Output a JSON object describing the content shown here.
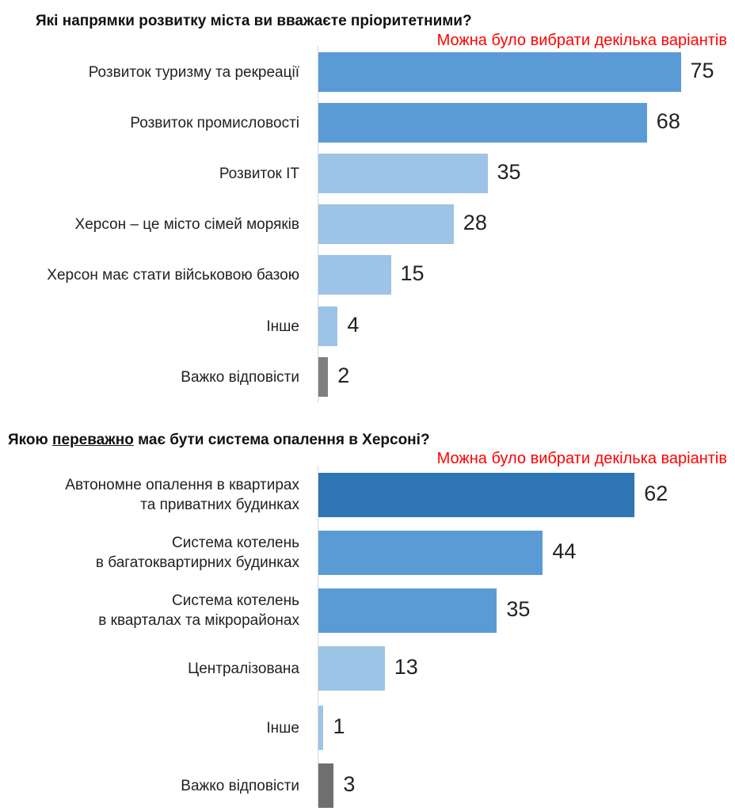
{
  "chart_data": [
    {
      "type": "bar",
      "orientation": "horizontal",
      "title": "Які напрямки розвитку міста ви вважаєте пріоритетними?",
      "note": "Можна було вибрати декілька варіантів",
      "categories": [
        "Розвиток туризму та рекреації",
        "Розвиток промисловості",
        "Розвиток ІТ",
        "Херсон – це місто сімей моряків",
        "Херсон має стати військовою базою",
        "Інше",
        "Важко відповісти"
      ],
      "values": [
        75,
        68,
        35,
        28,
        15,
        4,
        2
      ],
      "colors": [
        "#5B9BD5",
        "#5B9BD5",
        "#9DC3E6",
        "#9DC3E6",
        "#9DC3E6",
        "#9DC3E6",
        "#7F7F7F"
      ],
      "xlim": [
        0,
        80
      ]
    },
    {
      "type": "bar",
      "orientation": "horizontal",
      "title_parts": [
        "Якою ",
        "переважно",
        " має бути система опалення в Херсоні?"
      ],
      "note": "Можна було вибрати декілька варіантів",
      "categories": [
        "Автономне опалення в квартирах\nта приватних будинках",
        "Система котелень\nв багатоквартирних будинках",
        "Система котелень\nв кварталах та мікрорайонах",
        "Централізована",
        "Інше",
        "Важко відповісти"
      ],
      "values": [
        62,
        44,
        35,
        13,
        1,
        3
      ],
      "colors": [
        "#2E75B6",
        "#5B9BD5",
        "#5B9BD5",
        "#9DC3E6",
        "#9DC3E6",
        "#6F6F6F"
      ],
      "xlim": [
        0,
        80
      ]
    }
  ]
}
